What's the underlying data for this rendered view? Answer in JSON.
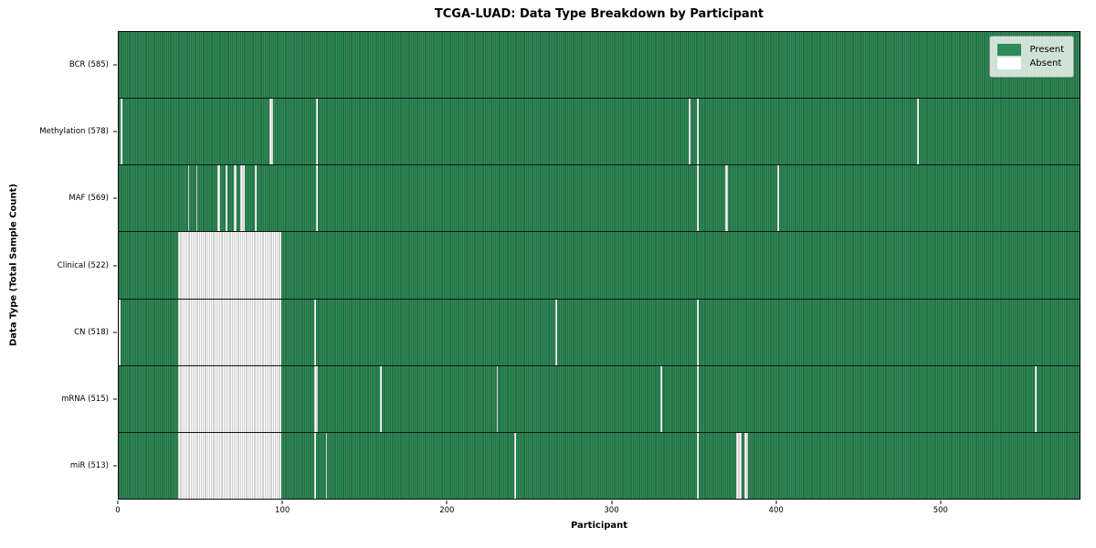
{
  "title": "TCGA-LUAD: Data Type Breakdown by Participant",
  "axes": {
    "xlabel": "Participant",
    "ylabel": "Data Type (Total Sample Count)"
  },
  "legend": {
    "items": [
      {
        "label": "Present",
        "color": "#2e8b57"
      },
      {
        "label": "Absent",
        "color": "#ffffff"
      }
    ]
  },
  "colors": {
    "present_fill": "#2e8b57",
    "present_edge": "#1e5a38",
    "absent_fill": "#fdfdfd",
    "absent_edge": "#a5a5a5",
    "spine": "#0a0a0a"
  },
  "chart_data": {
    "type": "heatmap",
    "title": "TCGA-LUAD: Data Type Breakdown by Participant",
    "xlabel": "Participant",
    "ylabel": "Data Type (Total Sample Count)",
    "x_min": 0,
    "x_max": 585,
    "x_ticks": [
      0,
      100,
      200,
      300,
      400,
      500
    ],
    "total_participants": 585,
    "legend_position": "upper right",
    "grid": false,
    "value_encoding": {
      "present": "seagreen cell",
      "absent": "white cell"
    },
    "rows": [
      {
        "name": "BCR",
        "label": "BCR (585)",
        "present_count": 585,
        "absent_count": 0,
        "absent_ranges": []
      },
      {
        "name": "Methylation",
        "label": "Methylation (578)",
        "present_count": 578,
        "absent_count": 7,
        "absent_ranges": [
          [
            1,
            1
          ],
          [
            92,
            2
          ],
          [
            120,
            1
          ],
          [
            347,
            1
          ],
          [
            352,
            1
          ],
          [
            486,
            1
          ]
        ]
      },
      {
        "name": "MAF",
        "label": "MAF (569)",
        "present_count": 569,
        "absent_count": 16,
        "absent_ranges": [
          [
            42,
            1
          ],
          [
            47,
            1
          ],
          [
            60,
            2
          ],
          [
            65,
            1
          ],
          [
            70,
            2
          ],
          [
            74,
            3
          ],
          [
            83,
            1
          ],
          [
            120,
            1
          ],
          [
            352,
            1
          ],
          [
            369,
            2
          ],
          [
            401,
            1
          ]
        ]
      },
      {
        "name": "Clinical",
        "label": "Clinical (522)",
        "present_count": 522,
        "absent_count": 63,
        "absent_ranges": [
          [
            36,
            63
          ]
        ]
      },
      {
        "name": "CN",
        "label": "CN (518)",
        "present_count": 518,
        "absent_count": 67,
        "absent_ranges": [
          [
            0,
            1
          ],
          [
            36,
            63
          ],
          [
            119,
            1
          ],
          [
            266,
            1
          ],
          [
            352,
            1
          ]
        ]
      },
      {
        "name": "mRNA",
        "label": "mRNA (515)",
        "present_count": 515,
        "absent_count": 70,
        "absent_ranges": [
          [
            36,
            63
          ],
          [
            119,
            2
          ],
          [
            159,
            1
          ],
          [
            230,
            1
          ],
          [
            330,
            1
          ],
          [
            352,
            1
          ],
          [
            558,
            1
          ]
        ]
      },
      {
        "name": "miR",
        "label": "miR (513)",
        "present_count": 513,
        "absent_count": 72,
        "absent_ranges": [
          [
            36,
            63
          ],
          [
            119,
            1
          ],
          [
            126,
            1
          ],
          [
            241,
            1
          ],
          [
            352,
            1
          ],
          [
            376,
            3
          ],
          [
            381,
            2
          ]
        ]
      }
    ]
  }
}
